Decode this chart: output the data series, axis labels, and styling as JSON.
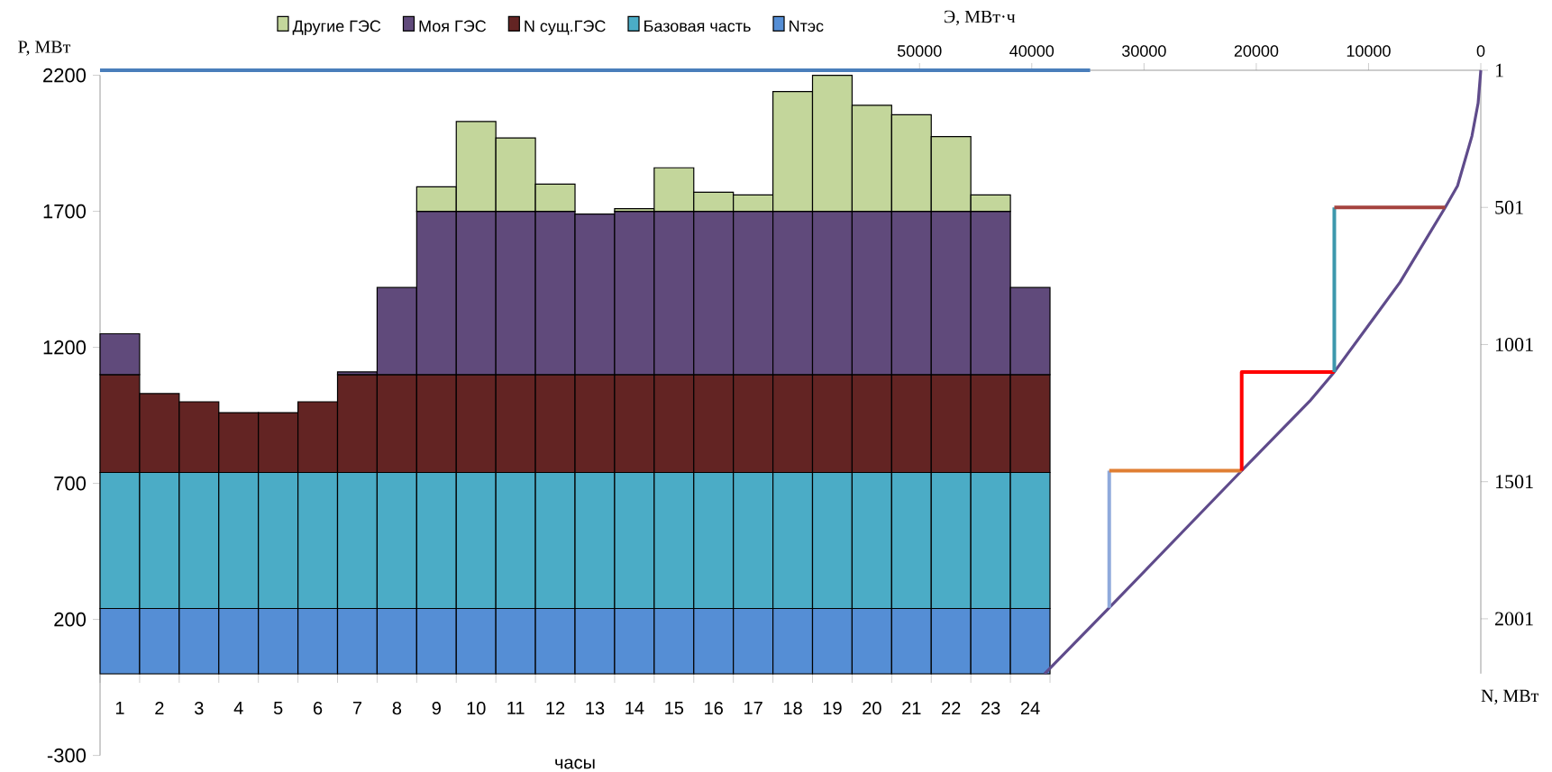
{
  "chart_data": [
    {
      "type": "bar",
      "stacked": true,
      "legend": "top",
      "xlabel": "часы",
      "ylabel": "P, МВт",
      "categories": [
        "1",
        "2",
        "3",
        "4",
        "5",
        "6",
        "7",
        "8",
        "9",
        "10",
        "11",
        "12",
        "13",
        "14",
        "15",
        "16",
        "17",
        "18",
        "19",
        "20",
        "21",
        "22",
        "23",
        "24"
      ],
      "ylim": [
        -300,
        2200
      ],
      "yticks": [
        -300,
        200,
        700,
        1200,
        1700,
        2200
      ],
      "series": [
        {
          "name": "Nтэс",
          "color": "#558ed5",
          "values": [
            240,
            240,
            240,
            240,
            240,
            240,
            240,
            240,
            240,
            240,
            240,
            240,
            240,
            240,
            240,
            240,
            240,
            240,
            240,
            240,
            240,
            240,
            240,
            240
          ]
        },
        {
          "name": "Базовая часть",
          "color": "#4bacc6",
          "values": [
            500,
            500,
            500,
            500,
            500,
            500,
            500,
            500,
            500,
            500,
            500,
            500,
            500,
            500,
            500,
            500,
            500,
            500,
            500,
            500,
            500,
            500,
            500,
            500
          ]
        },
        {
          "name": "N сущ.ГЭС",
          "color": "#632423",
          "values": [
            360,
            290,
            260,
            220,
            220,
            260,
            360,
            360,
            360,
            360,
            360,
            360,
            360,
            360,
            360,
            360,
            360,
            360,
            360,
            360,
            360,
            360,
            360,
            360
          ]
        },
        {
          "name": "Моя ГЭС",
          "color": "#604a7b",
          "values": [
            150,
            0,
            0,
            0,
            0,
            0,
            10,
            320,
            600,
            600,
            600,
            600,
            590,
            600,
            600,
            600,
            600,
            600,
            600,
            600,
            600,
            600,
            600,
            320
          ]
        },
        {
          "name": "Другие ГЭС",
          "color": "#c3d69b",
          "values": [
            0,
            0,
            0,
            0,
            0,
            0,
            0,
            0,
            90,
            330,
            270,
            100,
            0,
            10,
            160,
            70,
            60,
            440,
            500,
            390,
            355,
            275,
            60,
            0
          ]
        }
      ]
    },
    {
      "type": "line",
      "xlabel": "Э, МВт·ч",
      "ylabel": "N, МВт",
      "xlim": [
        123000,
        0
      ],
      "xticks": [
        50000,
        40000,
        30000,
        20000,
        10000,
        0
      ],
      "ylim": [
        2201,
        1
      ],
      "yticks": [
        1,
        501,
        1001,
        1501,
        2001
      ],
      "series": [
        {
          "color": "#5f4b8b",
          "x": [
            38850,
            33100,
            21300,
            15250,
            13050,
            7200,
            3170,
            2070,
            790,
            240,
            0
          ],
          "values": [
            2201,
            1961,
            1461,
            1208,
            1101,
            774,
            501,
            422,
            241,
            121,
            1
          ]
        },
        {
          "color": "#8faadc",
          "x": [
            33100,
            33100
          ],
          "values": [
            1961,
            1461
          ]
        },
        {
          "color": "#e07f33",
          "x": [
            33100,
            21300
          ],
          "values": [
            1461,
            1461
          ]
        },
        {
          "color": "#ff0000",
          "x": [
            21300,
            21300,
            13050
          ],
          "values": [
            1461,
            1101,
            1101
          ]
        },
        {
          "color": "#3d98ad",
          "x": [
            13050,
            13050
          ],
          "values": [
            1101,
            501
          ]
        },
        {
          "color": "#a5433f",
          "x": [
            13050,
            3170
          ],
          "values": [
            501,
            501
          ]
        },
        {
          "color": "#4a7ebb",
          "x": [
            123000,
            34800
          ],
          "values": [
            1,
            1
          ]
        }
      ]
    }
  ]
}
